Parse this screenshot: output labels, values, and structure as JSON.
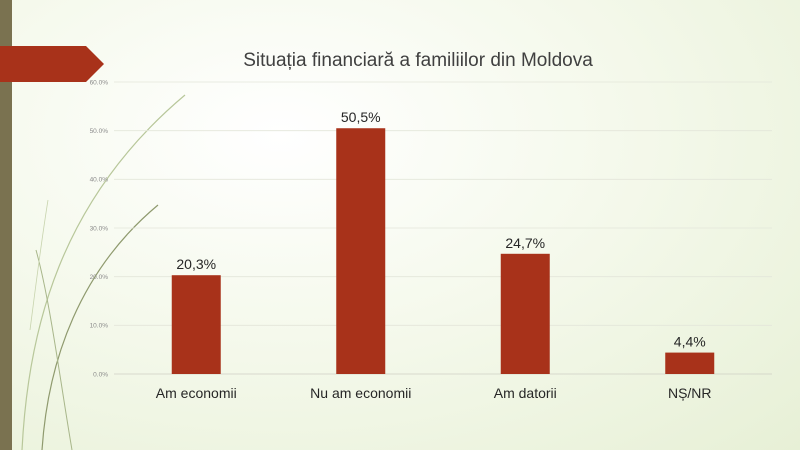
{
  "chart_data": {
    "type": "bar",
    "title": "Situația financiară a familiilor din Moldova",
    "categories": [
      "Am economii",
      "Nu am economii",
      "Am datorii",
      "NȘ/NR"
    ],
    "values": [
      20.3,
      50.5,
      24.7,
      4.4
    ],
    "value_labels": [
      "20,3%",
      "50,5%",
      "24,7%",
      "4,4%"
    ],
    "ylim": [
      0,
      60
    ],
    "y_ticks": [
      0,
      10,
      20,
      30,
      40,
      50,
      60
    ],
    "y_tick_labels": [
      "0.0%",
      "10.0%",
      "20.0%",
      "30.0%",
      "40.0%",
      "50.0%",
      "60.0%"
    ],
    "xlabel": "",
    "ylabel": "",
    "grid": true,
    "bar_color": "#a8321a"
  },
  "theme": {
    "accent": "#a8321a",
    "strip": "#7a7250"
  }
}
